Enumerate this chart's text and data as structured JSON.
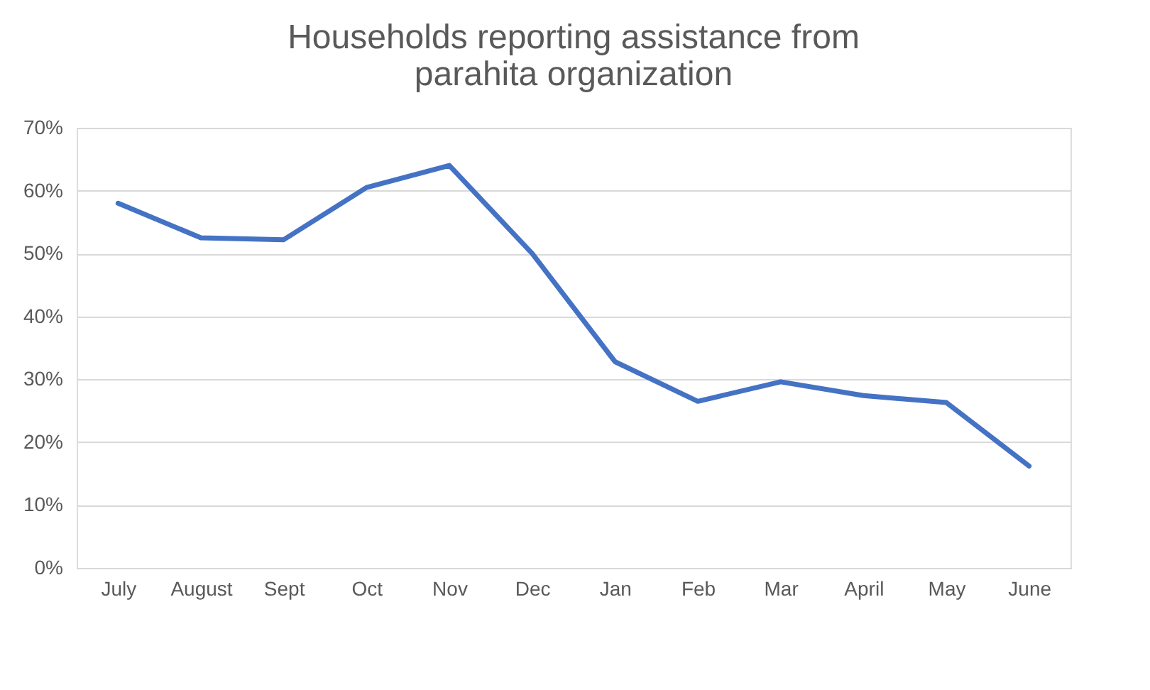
{
  "chart_data": {
    "type": "line",
    "title": "Households reporting assistance from parahita organization",
    "categories": [
      "July",
      "August",
      "Sept",
      "Oct",
      "Nov",
      "Dec",
      "Jan",
      "Feb",
      "Mar",
      "April",
      "May",
      "June"
    ],
    "series": [
      {
        "color": "#4472c4",
        "values": [
          58,
          52.5,
          52.2,
          60.5,
          64,
          50,
          32.8,
          26.5,
          29.6,
          27.4,
          26.3,
          16.2
        ]
      }
    ],
    "ylim": [
      0,
      70
    ],
    "yticks": [
      {
        "value": 0,
        "label": "0%"
      },
      {
        "value": 10,
        "label": "10%"
      },
      {
        "value": 20,
        "label": "20%"
      },
      {
        "value": 30,
        "label": "30%"
      },
      {
        "value": 40,
        "label": "40%"
      },
      {
        "value": 50,
        "label": "50%"
      },
      {
        "value": 60,
        "label": "60%"
      },
      {
        "value": 70,
        "label": "70%"
      }
    ],
    "grid": "y",
    "legend": false,
    "marker": "none",
    "line_style": "solid"
  }
}
